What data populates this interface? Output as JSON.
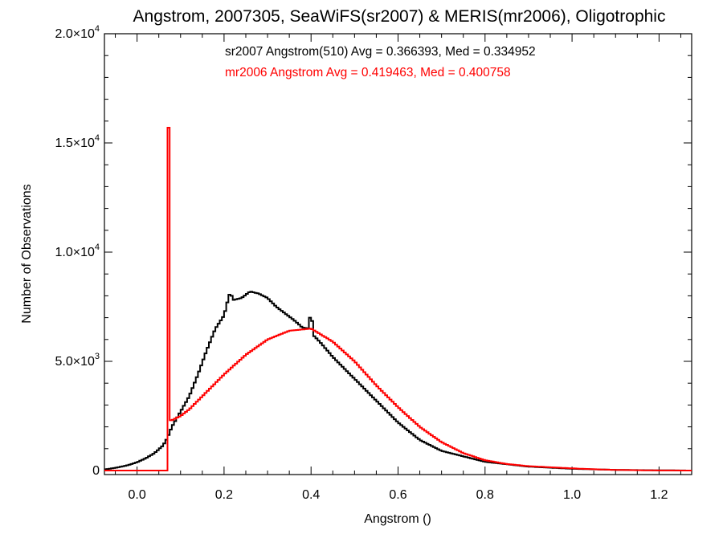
{
  "chart_data": {
    "type": "histogram",
    "title": "Angstrom, 2007305, SeaWiFS(sr2007) & MERIS(mr2006), Oligotrophic",
    "xlabel": "Angstrom ()",
    "ylabel": "Number of Observations",
    "xlim": [
      -0.075,
      1.275
    ],
    "ylim": [
      0,
      20000
    ],
    "x_ticks": [
      {
        "value": 0.0,
        "label": "0.0"
      },
      {
        "value": 0.2,
        "label": "0.2"
      },
      {
        "value": 0.4,
        "label": "0.4"
      },
      {
        "value": 0.6,
        "label": "0.6"
      },
      {
        "value": 0.8,
        "label": "0.8"
      },
      {
        "value": 1.0,
        "label": "1.0"
      },
      {
        "value": 1.2,
        "label": "1.2"
      }
    ],
    "y_ticks": [
      {
        "value": 0,
        "mantissa": "0",
        "exponent": ""
      },
      {
        "value": 5000,
        "mantissa": "5.0×10",
        "exponent": "3"
      },
      {
        "value": 10000,
        "mantissa": "1.0×10",
        "exponent": "4"
      },
      {
        "value": 15000,
        "mantissa": "1.5×10",
        "exponent": "4"
      },
      {
        "value": 20000,
        "mantissa": "2.0×10",
        "exponent": "4"
      }
    ],
    "annotations": [
      {
        "text": "sr2007 Angstrom(510) Avg = 0.366393, Med = 0.334952",
        "color": "#000000"
      },
      {
        "text": "mr2006 Angstrom Avg = 0.419463, Med = 0.400758",
        "color": "#ff0000"
      }
    ],
    "series": [
      {
        "color": "#000000",
        "bin_width": 0.005,
        "x": [
          -0.075,
          -0.05,
          -0.02,
          0.0,
          0.02,
          0.04,
          0.06,
          0.07,
          0.08,
          0.1,
          0.12,
          0.14,
          0.16,
          0.18,
          0.2,
          0.21,
          0.215,
          0.22,
          0.24,
          0.26,
          0.28,
          0.3,
          0.32,
          0.34,
          0.36,
          0.38,
          0.395,
          0.4,
          0.405,
          0.42,
          0.45,
          0.5,
          0.55,
          0.6,
          0.65,
          0.7,
          0.8,
          0.9,
          1.0,
          1.1,
          1.2,
          1.275
        ],
        "y": [
          50,
          120,
          250,
          380,
          560,
          800,
          1150,
          1500,
          2000,
          2700,
          3400,
          4400,
          5500,
          6500,
          7100,
          7900,
          8200,
          7800,
          7900,
          8200,
          8100,
          7900,
          7500,
          7200,
          6900,
          6550,
          6500,
          7500,
          6200,
          5900,
          5200,
          4200,
          3200,
          2200,
          1400,
          900,
          400,
          180,
          80,
          30,
          10,
          0
        ]
      },
      {
        "color": "#ff0000",
        "bin_width": 0.005,
        "x": [
          -0.075,
          0.068,
          0.07,
          0.075,
          0.08,
          0.1,
          0.12,
          0.15,
          0.2,
          0.25,
          0.3,
          0.35,
          0.4,
          0.45,
          0.5,
          0.55,
          0.6,
          0.65,
          0.7,
          0.75,
          0.8,
          0.85,
          0.9,
          0.95,
          1.0,
          1.05,
          1.1,
          1.15,
          1.2,
          1.275
        ],
        "y": [
          0,
          0,
          15700,
          2300,
          2300,
          2500,
          2800,
          3400,
          4400,
          5300,
          6000,
          6400,
          6500,
          5900,
          5000,
          3900,
          2900,
          2000,
          1300,
          800,
          470,
          300,
          200,
          150,
          100,
          60,
          30,
          15,
          5,
          0
        ]
      }
    ]
  }
}
